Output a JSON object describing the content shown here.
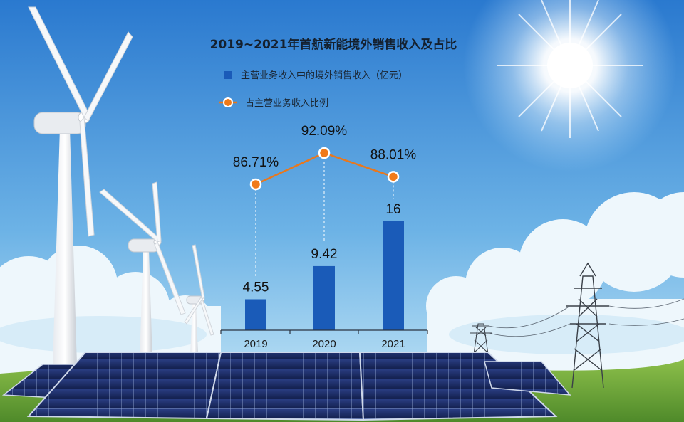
{
  "chart_data": {
    "type": "bar",
    "title": "2019~2021年首航新能境外销售收入及占比",
    "categories": [
      "2019",
      "2020",
      "2021"
    ],
    "series": [
      {
        "name": "主营业务收入中的境外销售收入（亿元）",
        "kind": "bar",
        "values": [
          4.55,
          9.42,
          16
        ],
        "labels": [
          "4.55",
          "9.42",
          "16"
        ],
        "color": "#1a5bb8"
      },
      {
        "name": "占主营业务收入比例",
        "kind": "line",
        "values": [
          86.71,
          92.09,
          88.01
        ],
        "labels": [
          "86.71%",
          "92.09%",
          "88.01%"
        ],
        "color": "#e8781e"
      }
    ],
    "legend_position": "top-left",
    "grid": false
  },
  "colors": {
    "sky_top": "#2a79cf",
    "sky_bottom": "#bfe3f6",
    "bar": "#1a5bb8",
    "line": "#e8781e",
    "ground": "#6fa43a"
  }
}
